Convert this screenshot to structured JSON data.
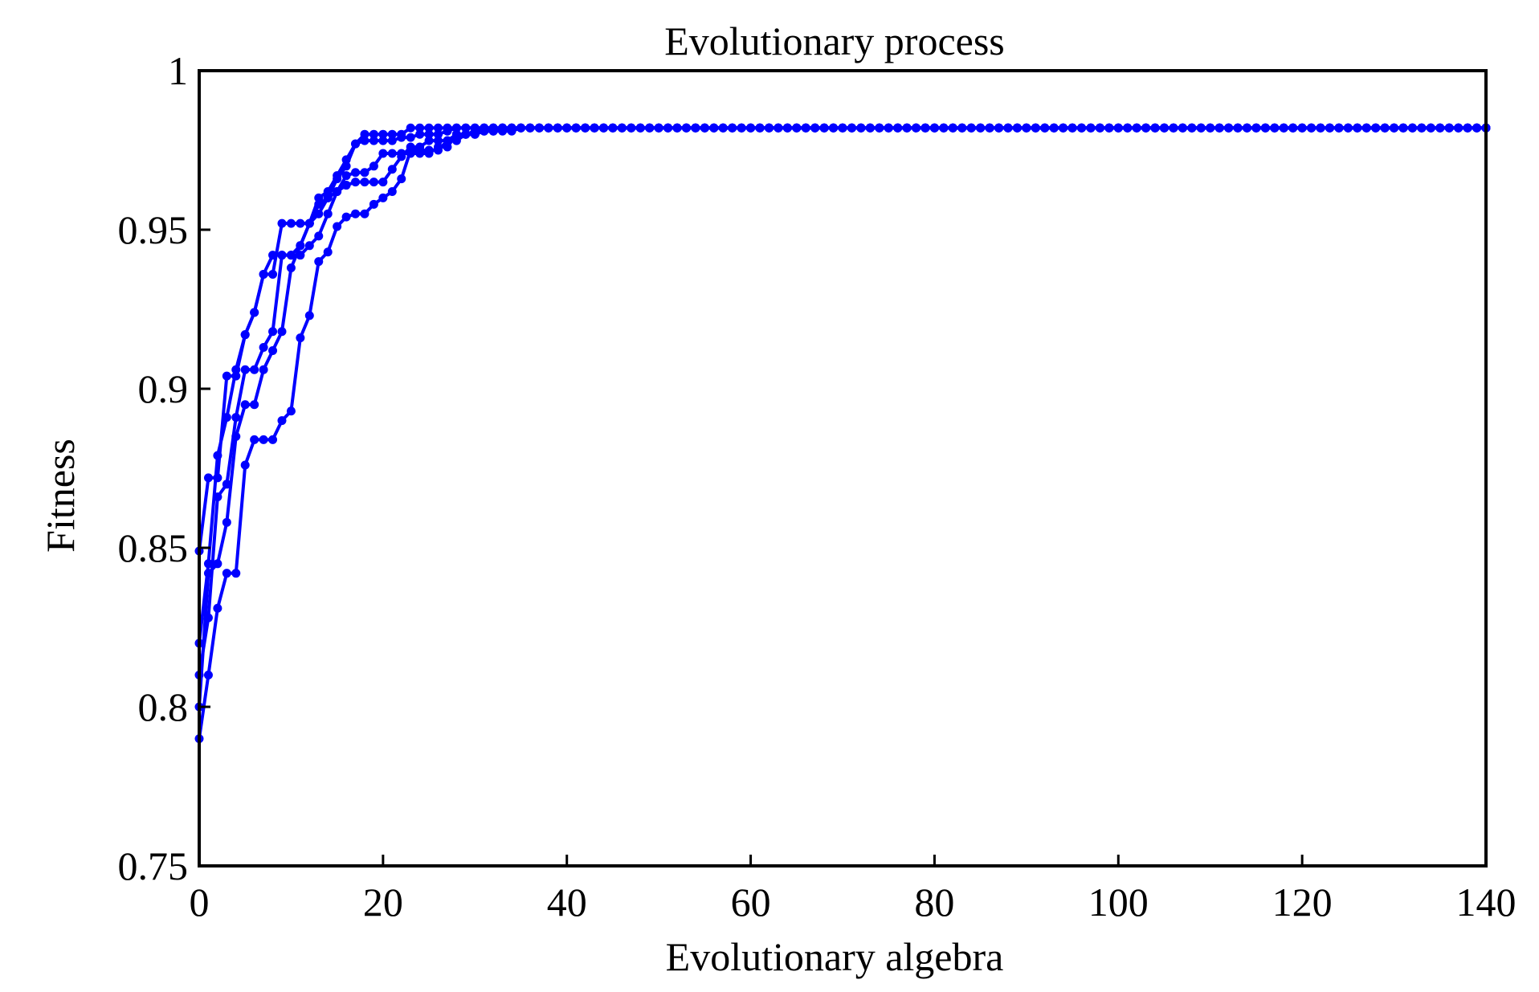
{
  "chart_data": {
    "type": "line",
    "title": "Evolutionary process",
    "xlabel": "Evolutionary algebra",
    "ylabel": "Fitness",
    "xlim": [
      0,
      140
    ],
    "ylim": [
      0.75,
      1
    ],
    "xticks": [
      0,
      20,
      40,
      60,
      80,
      100,
      120,
      140
    ],
    "xtick_labels": [
      "0",
      "20",
      "40",
      "60",
      "80",
      "100",
      "120",
      "140"
    ],
    "yticks": [
      0.75,
      0.8,
      0.85,
      0.9,
      0.95,
      1
    ],
    "ytick_labels": [
      "0.75",
      "0.8",
      "0.85",
      "0.9",
      "0.95",
      "1"
    ],
    "grid": false,
    "legend": "none",
    "line_color": "#0000ff",
    "plateau_value": 0.982,
    "series": [
      {
        "x": [
          0,
          1,
          2,
          3,
          4,
          5,
          6,
          7,
          8,
          9,
          10,
          11,
          12,
          13,
          14,
          15,
          16,
          17,
          18,
          19,
          20,
          21,
          22,
          23,
          24,
          25
        ],
        "y": [
          0.849,
          0.872,
          0.872,
          0.904,
          0.904,
          0.917,
          0.924,
          0.936,
          0.936,
          0.952,
          0.952,
          0.952,
          0.952,
          0.955,
          0.96,
          0.966,
          0.97,
          0.977,
          0.98,
          0.98,
          0.98,
          0.98,
          0.98,
          0.982,
          0.982,
          0.982
        ]
      },
      {
        "x": [
          0,
          1,
          2,
          3,
          4,
          5,
          6,
          7,
          8,
          9,
          10,
          11,
          12,
          13,
          14,
          15,
          16,
          17,
          18,
          19,
          20,
          21,
          22,
          23,
          24,
          25,
          26,
          27,
          28,
          29
        ],
        "y": [
          0.82,
          0.845,
          0.879,
          0.891,
          0.906,
          0.917,
          0.924,
          0.936,
          0.942,
          0.942,
          0.942,
          0.945,
          0.952,
          0.96,
          0.962,
          0.967,
          0.972,
          0.977,
          0.978,
          0.978,
          0.978,
          0.978,
          0.979,
          0.979,
          0.98,
          0.98,
          0.98,
          0.981,
          0.982,
          0.982
        ]
      },
      {
        "x": [
          0,
          1,
          2,
          3,
          4,
          5,
          6,
          7,
          8,
          9,
          10,
          11,
          12,
          13,
          14,
          15,
          16,
          17,
          18,
          19,
          20,
          21,
          22,
          23,
          24,
          25,
          26,
          27,
          28,
          29,
          30,
          31
        ],
        "y": [
          0.81,
          0.828,
          0.866,
          0.87,
          0.891,
          0.906,
          0.906,
          0.913,
          0.918,
          0.942,
          0.942,
          0.942,
          0.945,
          0.948,
          0.955,
          0.962,
          0.964,
          0.965,
          0.965,
          0.965,
          0.965,
          0.969,
          0.973,
          0.976,
          0.976,
          0.978,
          0.978,
          0.978,
          0.98,
          0.98,
          0.981,
          0.982
        ]
      },
      {
        "x": [
          0,
          1,
          2,
          3,
          4,
          5,
          6,
          7,
          8,
          9,
          10,
          11,
          12,
          13,
          14,
          15,
          16,
          17,
          18,
          19,
          20,
          21,
          22,
          23,
          24,
          25,
          26,
          27,
          28,
          29,
          30,
          31,
          32,
          33
        ],
        "y": [
          0.8,
          0.842,
          0.845,
          0.858,
          0.885,
          0.895,
          0.895,
          0.906,
          0.912,
          0.918,
          0.938,
          0.945,
          0.952,
          0.958,
          0.96,
          0.962,
          0.967,
          0.968,
          0.968,
          0.97,
          0.974,
          0.974,
          0.974,
          0.974,
          0.974,
          0.974,
          0.976,
          0.976,
          0.98,
          0.98,
          0.98,
          0.981,
          0.981,
          0.982
        ]
      },
      {
        "x": [
          0,
          1,
          2,
          3,
          4,
          5,
          6,
          7,
          8,
          9,
          10,
          11,
          12,
          13,
          14,
          15,
          16,
          17,
          18,
          19,
          20,
          21,
          22,
          23,
          24,
          25,
          26,
          27,
          28,
          29,
          30,
          31,
          32,
          33,
          34,
          35
        ],
        "y": [
          0.79,
          0.81,
          0.831,
          0.842,
          0.842,
          0.876,
          0.884,
          0.884,
          0.884,
          0.89,
          0.893,
          0.916,
          0.923,
          0.94,
          0.943,
          0.951,
          0.954,
          0.955,
          0.955,
          0.958,
          0.96,
          0.962,
          0.966,
          0.975,
          0.975,
          0.975,
          0.975,
          0.978,
          0.978,
          0.98,
          0.98,
          0.981,
          0.981,
          0.981,
          0.981,
          0.982
        ]
      }
    ]
  }
}
